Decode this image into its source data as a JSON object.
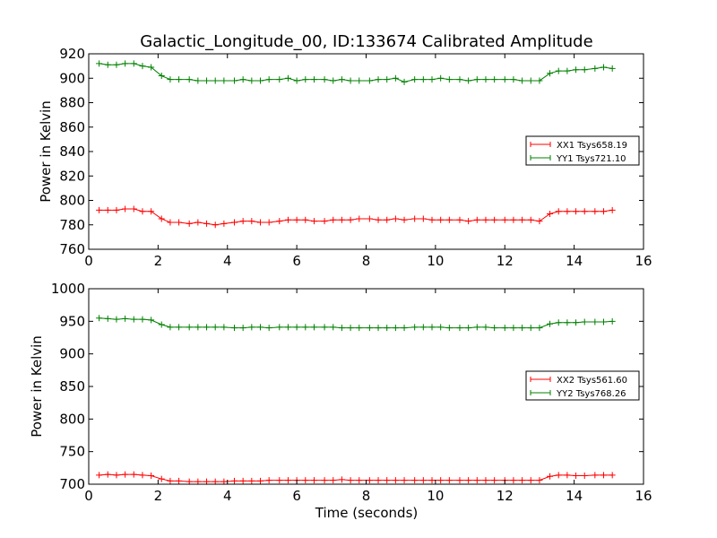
{
  "figure": {
    "title": "Galactic_Longitude_00, ID:133674 Calibrated Amplitude",
    "xlabel": "Time (seconds)"
  },
  "chart_data": [
    {
      "type": "line",
      "ylabel": "Power in Kelvin",
      "xlim": [
        0,
        16
      ],
      "ylim": [
        760,
        920
      ],
      "xticks": [
        0,
        2,
        4,
        6,
        8,
        10,
        12,
        14,
        16
      ],
      "yticks": [
        760,
        780,
        800,
        820,
        840,
        860,
        880,
        900,
        920
      ],
      "grid": false,
      "legend_position": "right",
      "series": [
        {
          "name": "XX1 Tsys658.19",
          "color": "#ff0000",
          "x": [
            0.3,
            0.55,
            0.8,
            1.05,
            1.3,
            1.55,
            1.8,
            2.1,
            2.35,
            2.6,
            2.9,
            3.15,
            3.4,
            3.65,
            3.9,
            4.2,
            4.45,
            4.7,
            4.95,
            5.2,
            5.5,
            5.75,
            6.0,
            6.25,
            6.5,
            6.8,
            7.05,
            7.3,
            7.55,
            7.8,
            8.1,
            8.35,
            8.6,
            8.85,
            9.1,
            9.4,
            9.65,
            9.9,
            10.15,
            10.4,
            10.7,
            10.95,
            11.2,
            11.45,
            11.7,
            12.0,
            12.25,
            12.5,
            12.75,
            13.0,
            13.3,
            13.55,
            13.8,
            14.05,
            14.3,
            14.6,
            14.85,
            15.1
          ],
          "y": [
            792,
            792,
            792,
            793,
            793,
            791,
            791,
            785,
            782,
            782,
            781,
            782,
            781,
            780,
            781,
            782,
            783,
            783,
            782,
            782,
            783,
            784,
            784,
            784,
            783,
            783,
            784,
            784,
            784,
            785,
            785,
            784,
            784,
            785,
            784,
            785,
            785,
            784,
            784,
            784,
            784,
            783,
            784,
            784,
            784,
            784,
            784,
            784,
            784,
            783,
            789,
            791,
            791,
            791,
            791,
            791,
            791,
            792
          ]
        },
        {
          "name": "YY1 Tsys721.10",
          "color": "#008000",
          "x": [
            0.3,
            0.55,
            0.8,
            1.05,
            1.3,
            1.55,
            1.8,
            2.1,
            2.35,
            2.6,
            2.9,
            3.15,
            3.4,
            3.65,
            3.9,
            4.2,
            4.45,
            4.7,
            4.95,
            5.2,
            5.5,
            5.75,
            6.0,
            6.25,
            6.5,
            6.8,
            7.05,
            7.3,
            7.55,
            7.8,
            8.1,
            8.35,
            8.6,
            8.85,
            9.1,
            9.4,
            9.65,
            9.9,
            10.15,
            10.4,
            10.7,
            10.95,
            11.2,
            11.45,
            11.7,
            12.0,
            12.25,
            12.5,
            12.75,
            13.0,
            13.3,
            13.55,
            13.8,
            14.05,
            14.3,
            14.6,
            14.85,
            15.1
          ],
          "y": [
            912,
            911,
            911,
            912,
            912,
            910,
            909,
            902,
            899,
            899,
            899,
            898,
            898,
            898,
            898,
            898,
            899,
            898,
            898,
            899,
            899,
            900,
            898,
            899,
            899,
            899,
            898,
            899,
            898,
            898,
            898,
            899,
            899,
            900,
            897,
            899,
            899,
            899,
            900,
            899,
            899,
            898,
            899,
            899,
            899,
            899,
            899,
            898,
            898,
            898,
            904,
            906,
            906,
            907,
            907,
            908,
            909,
            908
          ]
        }
      ]
    },
    {
      "type": "line",
      "ylabel": "Power in Kelvin",
      "xlabel": "Time (seconds)",
      "xlim": [
        0,
        16
      ],
      "ylim": [
        700,
        1000
      ],
      "xticks": [
        0,
        2,
        4,
        6,
        8,
        10,
        12,
        14,
        16
      ],
      "yticks": [
        700,
        750,
        800,
        850,
        900,
        950,
        1000
      ],
      "grid": false,
      "legend_position": "right",
      "series": [
        {
          "name": "XX2 Tsys561.60",
          "color": "#ff0000",
          "x": [
            0.3,
            0.55,
            0.8,
            1.05,
            1.3,
            1.55,
            1.8,
            2.1,
            2.35,
            2.6,
            2.9,
            3.15,
            3.4,
            3.65,
            3.9,
            4.2,
            4.45,
            4.7,
            4.95,
            5.2,
            5.5,
            5.75,
            6.0,
            6.25,
            6.5,
            6.8,
            7.05,
            7.3,
            7.55,
            7.8,
            8.1,
            8.35,
            8.6,
            8.85,
            9.1,
            9.4,
            9.65,
            9.9,
            10.15,
            10.4,
            10.7,
            10.95,
            11.2,
            11.45,
            11.7,
            12.0,
            12.25,
            12.5,
            12.75,
            13.0,
            13.3,
            13.55,
            13.8,
            14.05,
            14.3,
            14.6,
            14.85,
            15.1
          ],
          "y": [
            714,
            715,
            714,
            715,
            715,
            714,
            713,
            708,
            705,
            705,
            704,
            704,
            704,
            704,
            704,
            705,
            705,
            705,
            705,
            706,
            706,
            706,
            706,
            706,
            706,
            706,
            706,
            707,
            706,
            706,
            706,
            706,
            706,
            706,
            706,
            706,
            706,
            706,
            706,
            706,
            706,
            706,
            706,
            706,
            706,
            706,
            706,
            706,
            706,
            706,
            712,
            714,
            714,
            713,
            713,
            714,
            714,
            714
          ]
        },
        {
          "name": "YY2 Tsys768.26",
          "color": "#008000",
          "x": [
            0.3,
            0.55,
            0.8,
            1.05,
            1.3,
            1.55,
            1.8,
            2.1,
            2.35,
            2.6,
            2.9,
            3.15,
            3.4,
            3.65,
            3.9,
            4.2,
            4.45,
            4.7,
            4.95,
            5.2,
            5.5,
            5.75,
            6.0,
            6.25,
            6.5,
            6.8,
            7.05,
            7.3,
            7.55,
            7.8,
            8.1,
            8.35,
            8.6,
            8.85,
            9.1,
            9.4,
            9.65,
            9.9,
            10.15,
            10.4,
            10.7,
            10.95,
            11.2,
            11.45,
            11.7,
            12.0,
            12.25,
            12.5,
            12.75,
            13.0,
            13.3,
            13.55,
            13.8,
            14.05,
            14.3,
            14.6,
            14.85,
            15.1
          ],
          "y": [
            955,
            954,
            953,
            954,
            953,
            953,
            952,
            945,
            941,
            941,
            941,
            941,
            941,
            941,
            941,
            940,
            940,
            941,
            941,
            940,
            941,
            941,
            941,
            941,
            941,
            941,
            941,
            940,
            940,
            940,
            940,
            940,
            940,
            940,
            940,
            941,
            941,
            941,
            941,
            940,
            940,
            940,
            941,
            941,
            940,
            940,
            940,
            940,
            940,
            940,
            946,
            948,
            948,
            948,
            949,
            949,
            949,
            950
          ]
        }
      ]
    }
  ]
}
